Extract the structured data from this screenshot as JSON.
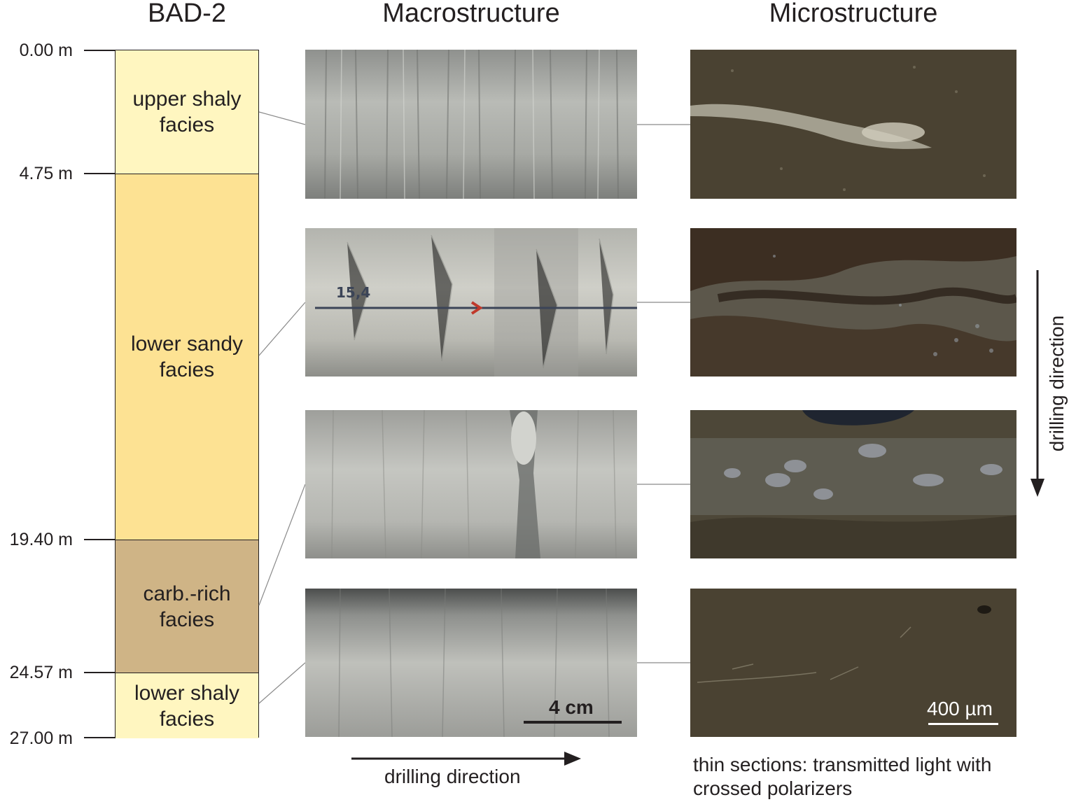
{
  "headers": {
    "column": "BAD-2",
    "macro": "Macrostructure",
    "micro": "Microstructure"
  },
  "depths": [
    "0.00 m",
    "4.75 m",
    "19.40 m",
    "24.57 m",
    "27.00 m"
  ],
  "units": [
    {
      "label": "upper shaly\nfacies",
      "color": "#fff6c0",
      "top_m": 0.0,
      "bottom_m": 4.75
    },
    {
      "label": "lower sandy\nfacies",
      "color": "#fde293",
      "top_m": 4.75,
      "bottom_m": 19.4
    },
    {
      "label": "carb.-rich\nfacies",
      "color": "#cfb486",
      "top_m": 19.4,
      "bottom_m": 24.57
    },
    {
      "label": "lower shaly\nfacies",
      "color": "#fff6c0",
      "top_m": 24.57,
      "bottom_m": 27.0
    }
  ],
  "macro": {
    "core_marking": "15,4",
    "scale_label": "4 cm",
    "direction_label": "drilling direction"
  },
  "micro": {
    "scale_label": "400 µm",
    "direction_label": "drilling direction",
    "note": "thin sections: transmitted light with\ncrossed polarizers"
  },
  "colors": {
    "line": "#231f20",
    "core_gray": "#a9aba6",
    "thin_section_dark": "#4a4232",
    "marker_red": "#c0392b"
  }
}
